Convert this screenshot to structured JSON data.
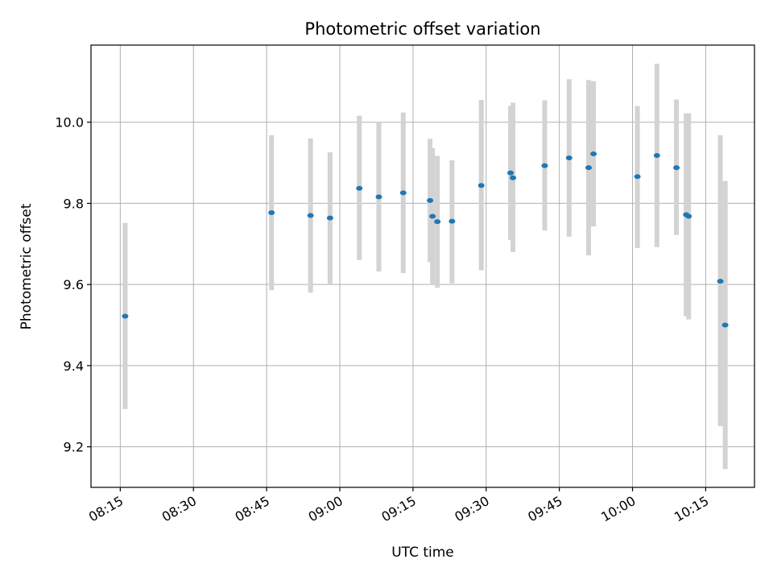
{
  "chart_data": {
    "type": "scatter",
    "title": "Photometric offset variation",
    "xlabel": "UTC time",
    "ylabel": "Photometric offset",
    "grid": true,
    "xlim": [
      "08:09",
      "10:25"
    ],
    "ylim": [
      9.1,
      10.19
    ],
    "x_ticks": [
      "08:15",
      "08:30",
      "08:45",
      "09:00",
      "09:15",
      "09:30",
      "09:45",
      "10:00",
      "10:15"
    ],
    "y_ticks": [
      9.2,
      9.4,
      9.6,
      9.8,
      10.0
    ],
    "y_tick_labels": [
      "9.2",
      "9.4",
      "9.6",
      "9.8",
      "10.0"
    ],
    "colors": {
      "point": "#1f77b4",
      "errorbar": "#d3d3d3",
      "grid": "#b0b0b0"
    },
    "points": [
      {
        "time": "08:16",
        "y": 9.522,
        "lo": 9.293,
        "hi": 9.752
      },
      {
        "time": "08:46",
        "y": 9.777,
        "lo": 9.586,
        "hi": 9.968
      },
      {
        "time": "08:54",
        "y": 9.77,
        "lo": 9.58,
        "hi": 9.96
      },
      {
        "time": "08:58",
        "y": 9.764,
        "lo": 9.6,
        "hi": 9.926
      },
      {
        "time": "09:04",
        "y": 9.837,
        "lo": 9.66,
        "hi": 10.016
      },
      {
        "time": "09:08",
        "y": 9.816,
        "lo": 9.632,
        "hi": 10.0
      },
      {
        "time": "09:13",
        "y": 9.826,
        "lo": 9.628,
        "hi": 10.024
      },
      {
        "time": "09:18.5",
        "y": 9.807,
        "lo": 9.655,
        "hi": 9.959
      },
      {
        "time": "09:19",
        "y": 9.768,
        "lo": 9.6,
        "hi": 9.936
      },
      {
        "time": "09:20",
        "y": 9.755,
        "lo": 9.592,
        "hi": 9.917
      },
      {
        "time": "09:23",
        "y": 9.756,
        "lo": 9.603,
        "hi": 9.906
      },
      {
        "time": "09:29",
        "y": 9.844,
        "lo": 9.635,
        "hi": 10.055
      },
      {
        "time": "09:35",
        "y": 9.875,
        "lo": 9.71,
        "hi": 10.04
      },
      {
        "time": "09:35.5",
        "y": 9.863,
        "lo": 9.68,
        "hi": 10.048
      },
      {
        "time": "09:42",
        "y": 9.893,
        "lo": 9.733,
        "hi": 10.054
      },
      {
        "time": "09:47",
        "y": 9.912,
        "lo": 9.718,
        "hi": 10.106
      },
      {
        "time": "09:51",
        "y": 9.888,
        "lo": 9.672,
        "hi": 10.104
      },
      {
        "time": "09:52",
        "y": 9.922,
        "lo": 9.743,
        "hi": 10.101
      },
      {
        "time": "10:01",
        "y": 9.866,
        "lo": 9.69,
        "hi": 10.04
      },
      {
        "time": "10:05",
        "y": 9.918,
        "lo": 9.692,
        "hi": 10.144
      },
      {
        "time": "10:09",
        "y": 9.888,
        "lo": 9.722,
        "hi": 10.056
      },
      {
        "time": "10:11",
        "y": 9.772,
        "lo": 9.522,
        "hi": 10.022
      },
      {
        "time": "10:11.5",
        "y": 9.768,
        "lo": 9.514,
        "hi": 10.022
      },
      {
        "time": "10:18",
        "y": 9.608,
        "lo": 9.251,
        "hi": 9.968
      },
      {
        "time": "10:19",
        "y": 9.5,
        "lo": 9.145,
        "hi": 9.855
      }
    ]
  }
}
